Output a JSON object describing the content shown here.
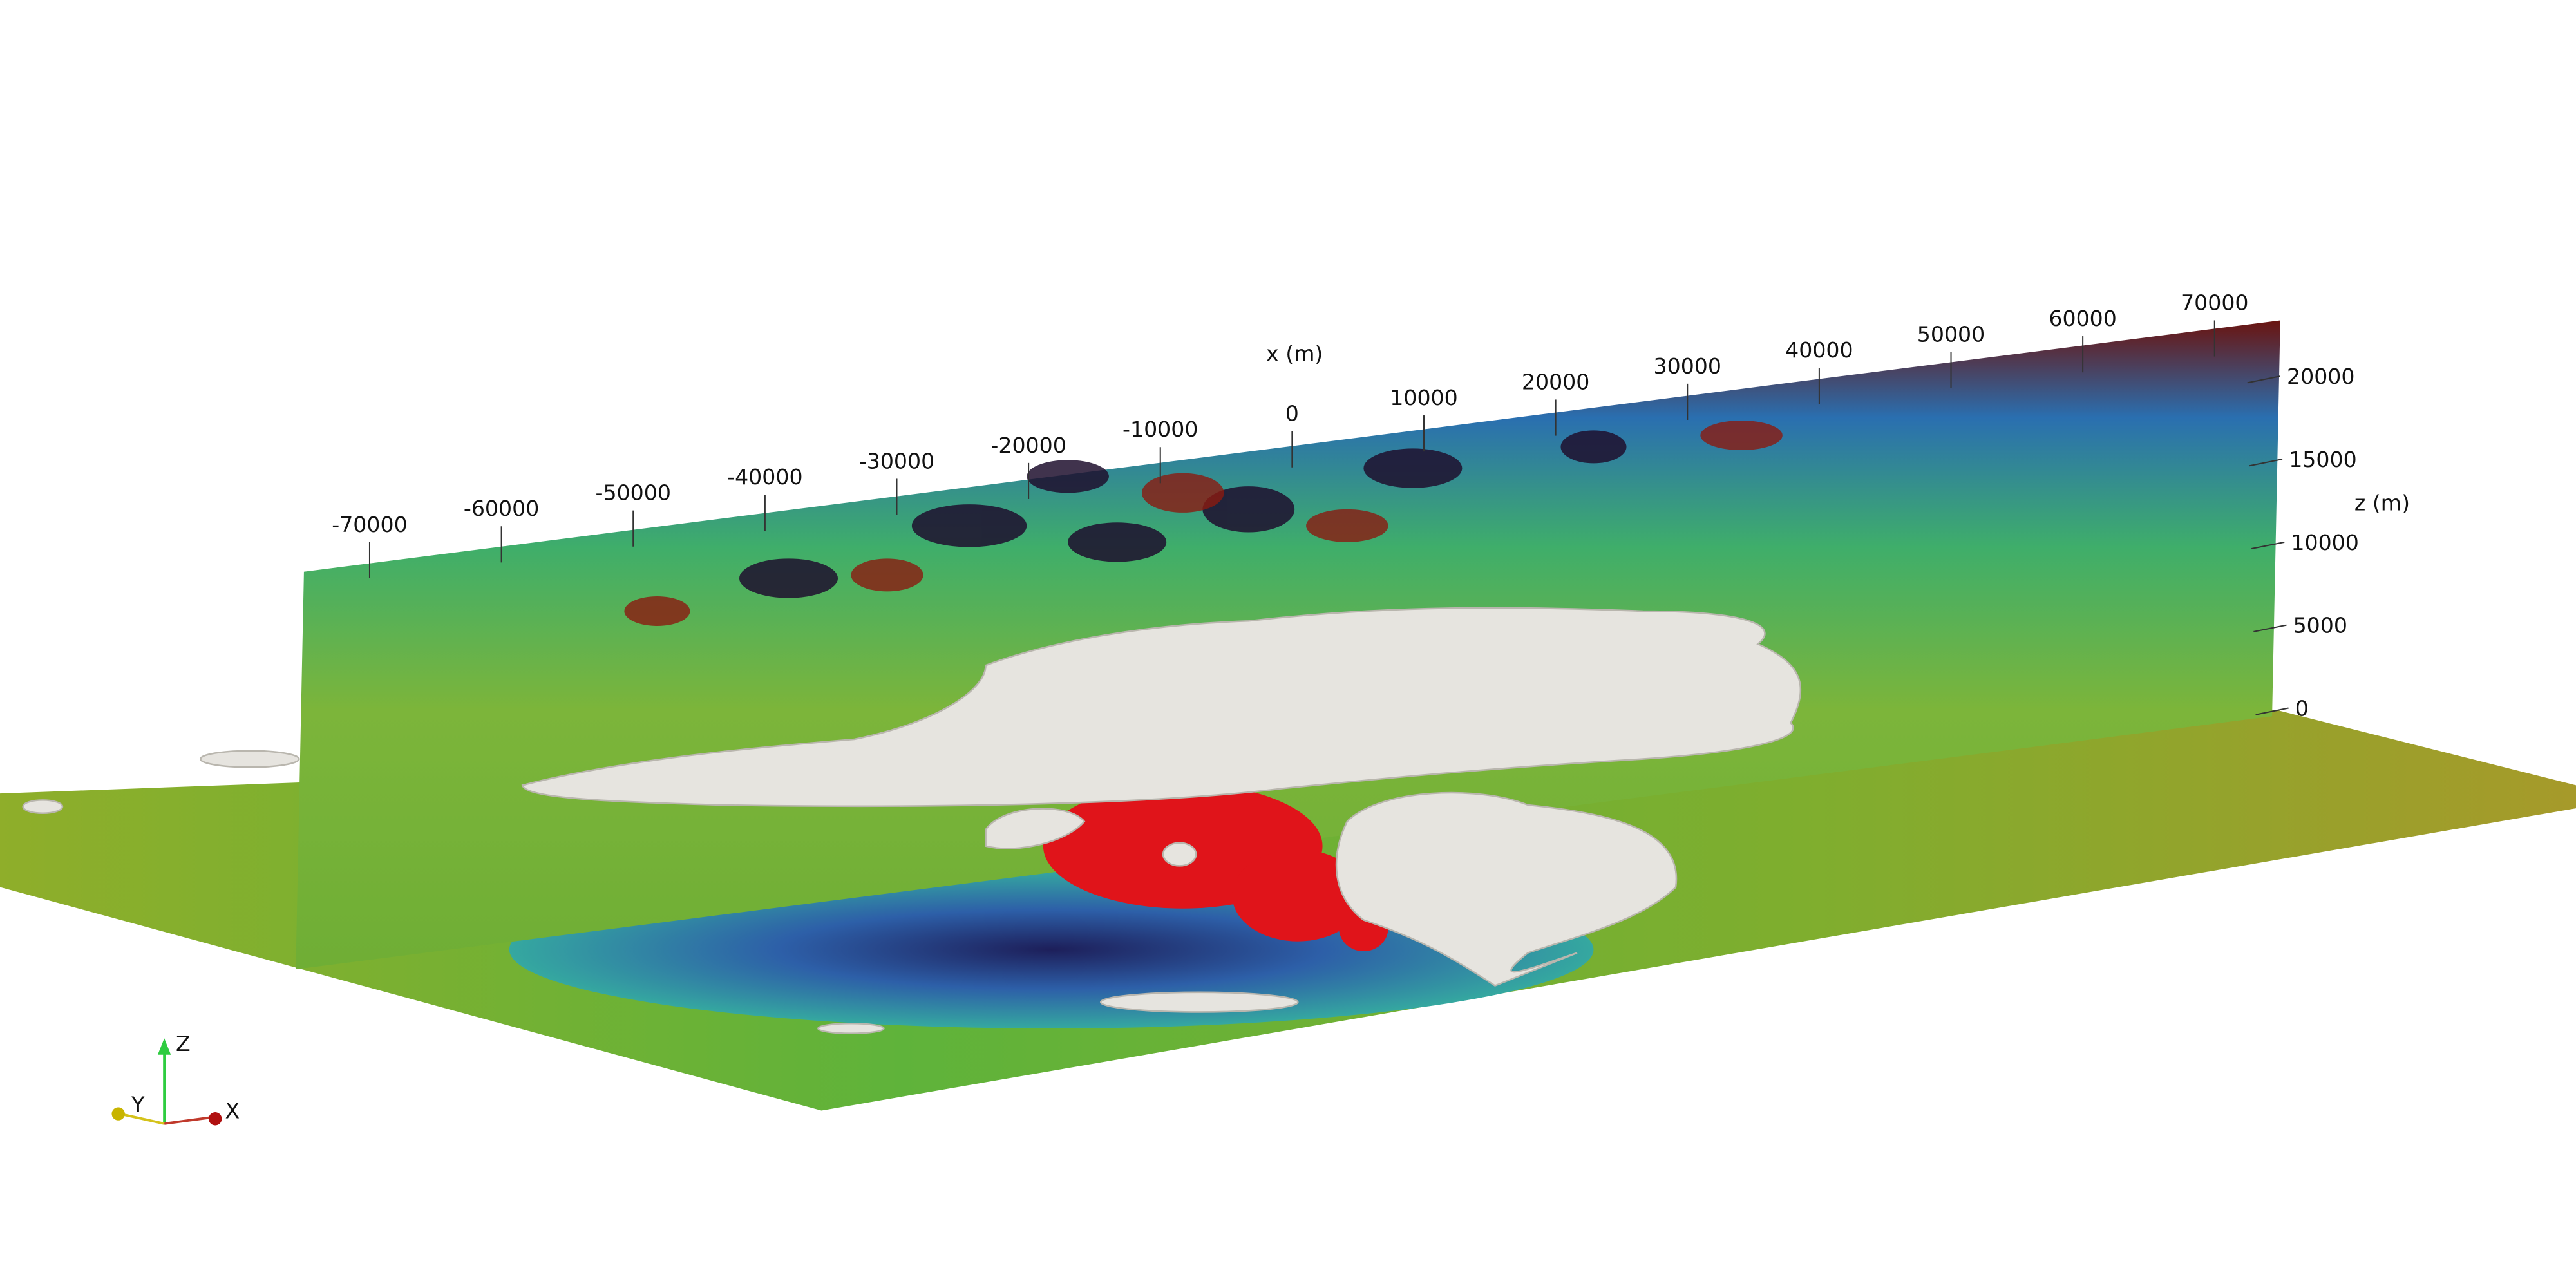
{
  "x_axis": {
    "title": "x (m)",
    "ticks": [
      -70000,
      -60000,
      -50000,
      -40000,
      -30000,
      -20000,
      -10000,
      0,
      10000,
      20000,
      30000,
      40000,
      50000,
      60000,
      70000
    ]
  },
  "z_axis": {
    "title": "z (m)",
    "ticks": [
      0,
      5000,
      10000,
      15000,
      20000
    ]
  },
  "orientation_axes": {
    "z": "Z",
    "y": "Y",
    "x": "X"
  }
}
